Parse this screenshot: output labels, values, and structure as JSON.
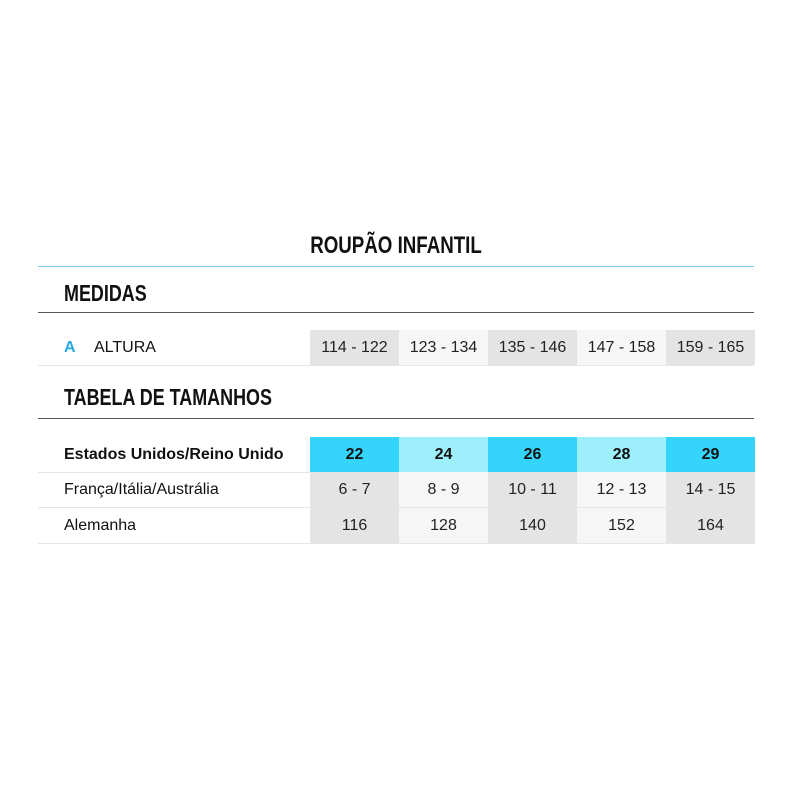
{
  "title": "ROUPÃO INFANTIL",
  "measures": {
    "heading": "MEDIDAS",
    "rows": [
      {
        "letter": "A",
        "label": "ALTURA",
        "values": [
          "114 - 122",
          "123 - 134",
          "135 - 146",
          "147 - 158",
          "159 - 165"
        ]
      }
    ]
  },
  "size_table": {
    "heading": "TABELA DE TAMANHOS",
    "header": {
      "label": "Estados Unidos/Reino Unido",
      "values": [
        "22",
        "24",
        "26",
        "28",
        "29"
      ]
    },
    "rows": [
      {
        "label": "França/Itália/Austrália",
        "values": [
          "6 - 7",
          "8 - 9",
          "10 - 11",
          "12 - 13",
          "14 - 15"
        ]
      },
      {
        "label": "Alemanha",
        "values": [
          "116",
          "128",
          "140",
          "152",
          "164"
        ]
      }
    ]
  },
  "colors": {
    "accent": "#29a8e0",
    "header_cyan": "#35d5fb",
    "header_light_cyan": "#9df0fb",
    "cell_dark": "#e4e4e4",
    "cell_light": "#f6f6f6"
  }
}
